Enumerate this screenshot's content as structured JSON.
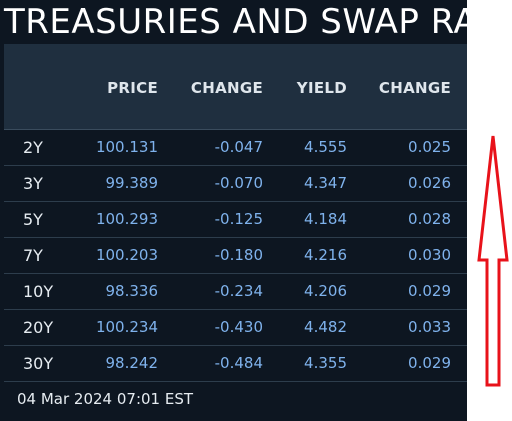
{
  "title": "TREASURIES AND SWAP RA",
  "table": {
    "columns": [
      "",
      "PRICE",
      "CHANGE",
      "YIELD",
      "CHANGE"
    ],
    "rows": [
      {
        "tenor": "2Y",
        "price": "100.131",
        "price_change": "-0.047",
        "yield": "4.555",
        "yield_change": "0.025"
      },
      {
        "tenor": "3Y",
        "price": "99.389",
        "price_change": "-0.070",
        "yield": "4.347",
        "yield_change": "0.026"
      },
      {
        "tenor": "5Y",
        "price": "100.293",
        "price_change": "-0.125",
        "yield": "4.184",
        "yield_change": "0.028"
      },
      {
        "tenor": "7Y",
        "price": "100.203",
        "price_change": "-0.180",
        "yield": "4.216",
        "yield_change": "0.030"
      },
      {
        "tenor": "10Y",
        "price": "98.336",
        "price_change": "-0.234",
        "yield": "4.206",
        "yield_change": "0.029"
      },
      {
        "tenor": "20Y",
        "price": "100.234",
        "price_change": "-0.430",
        "yield": "4.482",
        "yield_change": "0.033"
      },
      {
        "tenor": "30Y",
        "price": "98.242",
        "price_change": "-0.484",
        "yield": "4.355",
        "yield_change": "0.029"
      }
    ]
  },
  "footer": {
    "timestamp": "04 Mar 2024 07:01 EST"
  },
  "annotation": {
    "icon": "up-arrow-icon",
    "color": "#e8121a"
  },
  "colors": {
    "panel_background": "#0d1621",
    "header_background": "#1f2f3f",
    "value_text": "#7fb2ec",
    "label_text": "#e6ecf1"
  }
}
